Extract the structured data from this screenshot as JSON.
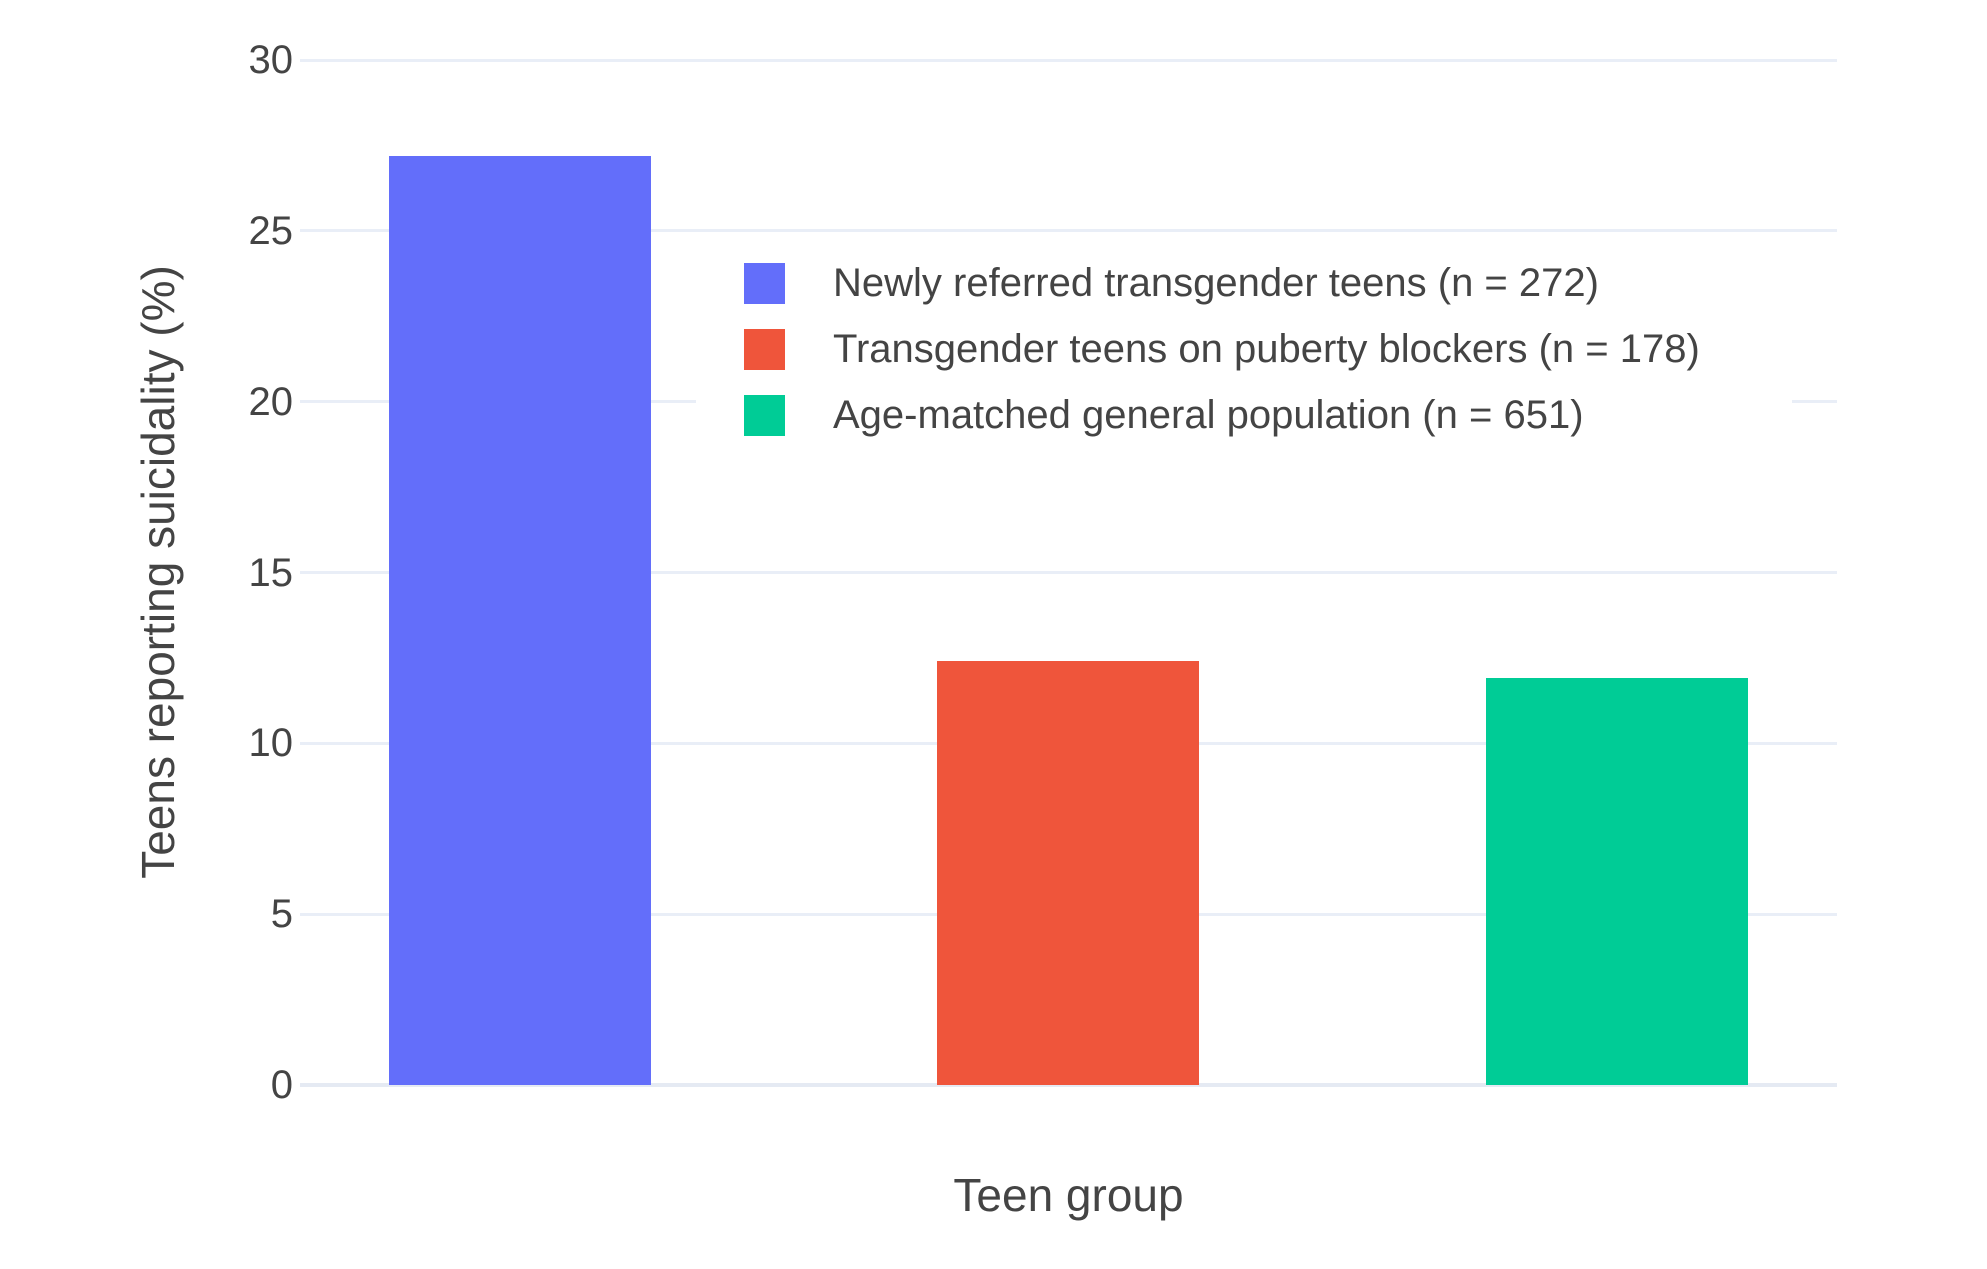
{
  "chart_data": {
    "type": "bar",
    "title": "",
    "xlabel": "Teen group",
    "ylabel": "Teens reporting suicidality (%)",
    "categories": [
      "Newly referred transgender teens (n = 272)",
      "Transgender teens on puberty blockers (n = 178)",
      "Age-matched general population (n = 651)"
    ],
    "values": [
      27.2,
      12.4,
      11.9
    ],
    "bar_colors": [
      "#636EFA",
      "#EF553B",
      "#00CC96"
    ],
    "ylim": [
      0,
      30
    ],
    "yticks": [
      0,
      5,
      10,
      15,
      20,
      25,
      30
    ],
    "grid": true,
    "grid_color": "#E9EEF7",
    "text_color": "#444444",
    "background_color": "#FFFFFF",
    "legend_position": "inside-top-center",
    "legend": [
      {
        "label": "Newly referred transgender teens (n = 272)",
        "color": "#636EFA"
      },
      {
        "label": "Transgender teens on puberty blockers (n = 178)",
        "color": "#EF553B"
      },
      {
        "label": "Age-matched general population (n = 651)",
        "color": "#00CC96"
      }
    ]
  }
}
